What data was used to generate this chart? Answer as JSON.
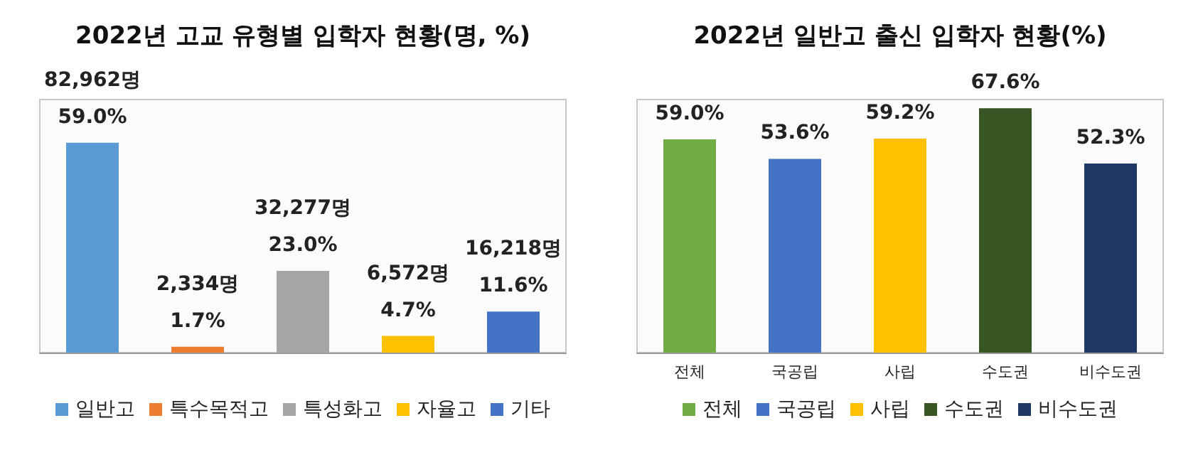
{
  "chart_data": [
    {
      "type": "bar",
      "title": "2022년 고교 유형별 입학자 현황(명, %)",
      "categories": [
        null,
        null,
        null,
        null,
        null
      ],
      "stacked": true,
      "legend": "bottom",
      "series": [
        {
          "name": "일반고",
          "color": "#5b9bd5",
          "values": [
            82962,
            null,
            null,
            null,
            null
          ],
          "value_labels": [
            "82,962명\n59.0%",
            null,
            null,
            null,
            null
          ]
        },
        {
          "name": "특수목적고",
          "color": "#ed7d31",
          "values": [
            null,
            2334,
            null,
            null,
            null
          ],
          "value_labels": [
            null,
            "2,334명\n1.7%",
            null,
            null,
            null
          ]
        },
        {
          "name": "특성화고",
          "color": "#a5a5a5",
          "values": [
            null,
            null,
            32277,
            null,
            null
          ],
          "value_labels": [
            null,
            null,
            "32,277명\n23.0%",
            null,
            null
          ]
        },
        {
          "name": "자율고",
          "color": "#ffc000",
          "values": [
            null,
            null,
            null,
            6572,
            null
          ],
          "value_labels": [
            null,
            null,
            null,
            "6,572명\n4.7%",
            null
          ]
        },
        {
          "name": "기타",
          "color": "#4472c4",
          "values": [
            null,
            null,
            null,
            null,
            16218
          ],
          "value_labels": [
            null,
            null,
            null,
            null,
            "16,218명\n11.6%"
          ]
        }
      ]
    },
    {
      "type": "bar",
      "title": "2022년 일반고 출신 입학자 현황(%)",
      "categories": [
        "전체",
        "국공립",
        "사립",
        "수도권",
        "비수도권"
      ],
      "stacked": true,
      "legend": "bottom",
      "series": [
        {
          "name": "전체",
          "color": "#70ad47",
          "values": [
            59.0,
            null,
            null,
            null,
            null
          ],
          "value_labels": [
            "59.0%",
            null,
            null,
            null,
            null
          ]
        },
        {
          "name": "국공립",
          "color": "#4472c4",
          "values": [
            null,
            53.6,
            null,
            null,
            null
          ],
          "value_labels": [
            null,
            "53.6%",
            null,
            null,
            null
          ]
        },
        {
          "name": "사립",
          "color": "#ffc000",
          "values": [
            null,
            null,
            59.2,
            null,
            null
          ],
          "value_labels": [
            null,
            null,
            "59.2%",
            null,
            null
          ]
        },
        {
          "name": "수도권",
          "color": "#375623",
          "values": [
            null,
            null,
            null,
            67.6,
            null
          ],
          "value_labels": [
            null,
            null,
            null,
            "67.6%",
            null
          ]
        },
        {
          "name": "비수도권",
          "color": "#203864",
          "values": [
            null,
            null,
            null,
            null,
            52.3
          ],
          "value_labels": [
            null,
            null,
            null,
            null,
            "52.3%"
          ]
        }
      ]
    }
  ]
}
